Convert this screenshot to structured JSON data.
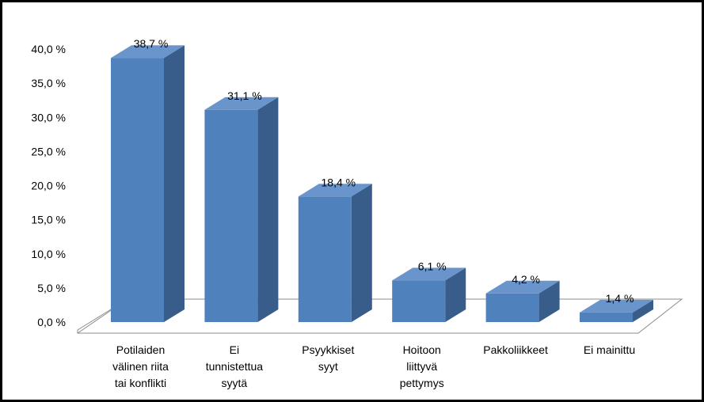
{
  "chart_data": {
    "type": "bar",
    "categories": [
      "Potilaiden välinen riita tai konflikti",
      "Ei tunnistettua syytä",
      "Psyykkiset syyt",
      "Hoitoon liittyvä pettymys",
      "Pakkoliikkeet",
      "Ei mainittu"
    ],
    "category_lines": [
      [
        "Potilaiden",
        "välinen riita",
        "tai konflikti"
      ],
      [
        "Ei",
        "tunnistettua",
        "syytä"
      ],
      [
        "Psyykkiset",
        "syyt"
      ],
      [
        "Hoitoon",
        "liittyvä",
        "pettymys"
      ],
      [
        "Pakkoliikkeet"
      ],
      [
        "Ei mainittu"
      ]
    ],
    "values": [
      38.7,
      31.1,
      18.4,
      6.1,
      4.2,
      1.4
    ],
    "data_labels": [
      "38,7 %",
      "31,1 %",
      "18,4 %",
      "6,1 %",
      "4,2 %",
      "1,4 %"
    ],
    "ylim": [
      0,
      40
    ],
    "yticks": [
      0,
      5,
      10,
      15,
      20,
      25,
      30,
      35,
      40
    ],
    "ytick_labels": [
      "0,0 %",
      "5,0 %",
      "10,0 %",
      "15,0 %",
      "20,0 %",
      "25,0 %",
      "30,0 %",
      "35,0 %",
      "40,0 %"
    ],
    "bar_color": "#4F81BD",
    "bar_side_color": "#385D8A",
    "bar_top_color": "#6A95CC",
    "title": "",
    "xlabel": "",
    "ylabel": "",
    "grid": false,
    "style": "3d-column"
  }
}
